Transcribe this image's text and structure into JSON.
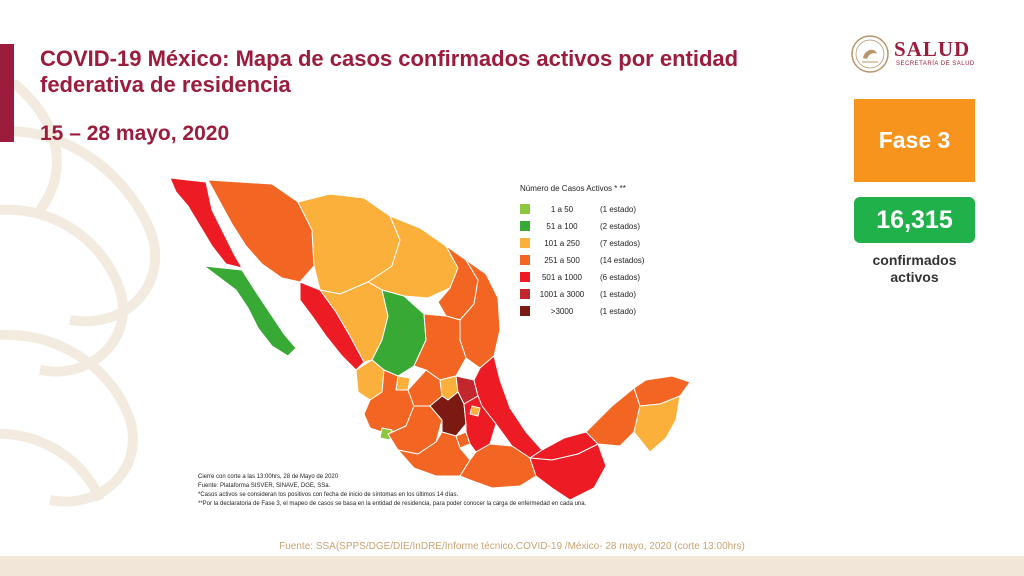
{
  "title": "COVID-19 México: Mapa de casos confirmados activos por entidad federativa de residencia",
  "date_range": "15 – 28 mayo, 2020",
  "logo": {
    "word": "SALUD",
    "subtitle": "SECRETARÍA DE SALUD"
  },
  "phase_label": "Fase 3",
  "active_count": "16,315",
  "active_label": "confirmados activos",
  "legend": {
    "title": "Número de Casos Activos * **",
    "items": [
      {
        "range": "1 a 50",
        "states": "(1 estado)",
        "color": "#8dc63f"
      },
      {
        "range": "51 a 100",
        "states": "(2 estados)",
        "color": "#39a935"
      },
      {
        "range": "101 a 250",
        "states": "(7 estados)",
        "color": "#fbb03b"
      },
      {
        "range": "251 a 500",
        "states": "(14 estados)",
        "color": "#f26522"
      },
      {
        "range": "501 a 1000",
        "states": "(6 estados)",
        "color": "#ed1c24"
      },
      {
        "range": "1001 a 3000",
        "states": "(1 estado)",
        "color": "#c1272d"
      },
      {
        "range": ">3000",
        "states": "(1 estado)",
        "color": "#7b1a12"
      }
    ]
  },
  "notes": [
    "Cierre con corte a las 13:00hrs, 28 de Mayo de 2020",
    "Fuente: Plataforma SISVER, SINAVE, DGE, SSa.",
    "*Casos activos se consideran los positivos con fecha de inicio de síntomas en los últimos 14 días.",
    "**Por la declaratoria de Fase 3, el mapeo de casos se basa en la entidad de residencia, para poder conocer la carga de enfermedad en cada una."
  ],
  "source": "Fuente: SSA(SPPS/DGE/DIE/InDRE/Informe técnico.COVID-19 /México- 28 mayo, 2020 (corte 13:00hrs)",
  "colors": {
    "accent": "#9b1c3c",
    "phase": "#f7941d",
    "count": "#21b14b"
  }
}
